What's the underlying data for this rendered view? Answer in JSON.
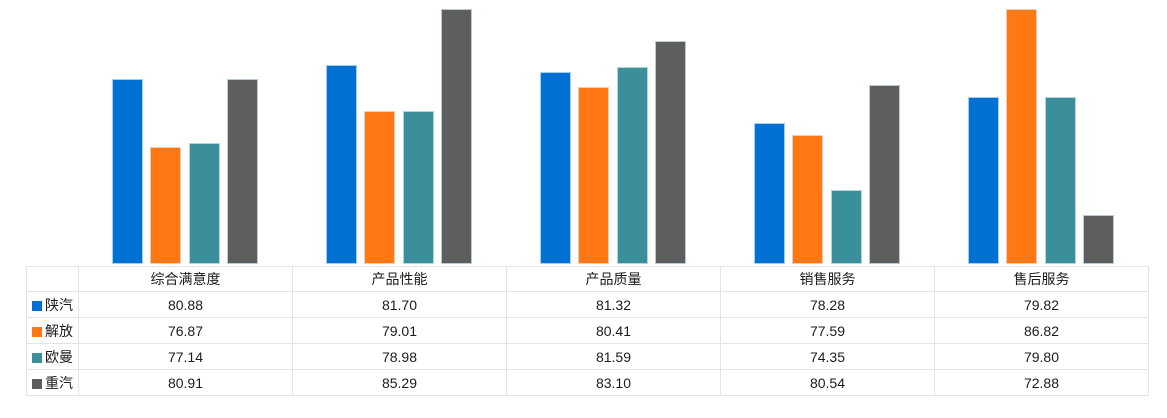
{
  "chart_data": {
    "type": "bar",
    "title": "",
    "categories": [
      "综合满意度",
      "产品性能",
      "产品质量",
      "销售服务",
      "售后服务"
    ],
    "series": [
      {
        "name": "陕汽",
        "color": "#0070d2",
        "values": [
          80.88,
          81.7,
          81.32,
          78.28,
          79.82
        ]
      },
      {
        "name": "解放",
        "color": "#ff7813",
        "values": [
          76.87,
          79.01,
          80.41,
          77.59,
          86.82
        ]
      },
      {
        "name": "欧曼",
        "color": "#3a8f9a",
        "values": [
          77.14,
          78.98,
          81.59,
          74.35,
          79.8
        ]
      },
      {
        "name": "重汽",
        "color": "#5e5e5e",
        "values": [
          80.91,
          85.29,
          83.1,
          80.54,
          72.88
        ]
      }
    ],
    "ylim": [
      70,
      85
    ],
    "value_decimals": 2,
    "grid": false,
    "axis_labels_visible": false,
    "legend_position": "data-table-left",
    "data_table": true,
    "note_clipping": "bars exceeding ylim max are clipped at plot top",
    "table_border_color": "#e4e4e4",
    "corner_cell": ""
  }
}
